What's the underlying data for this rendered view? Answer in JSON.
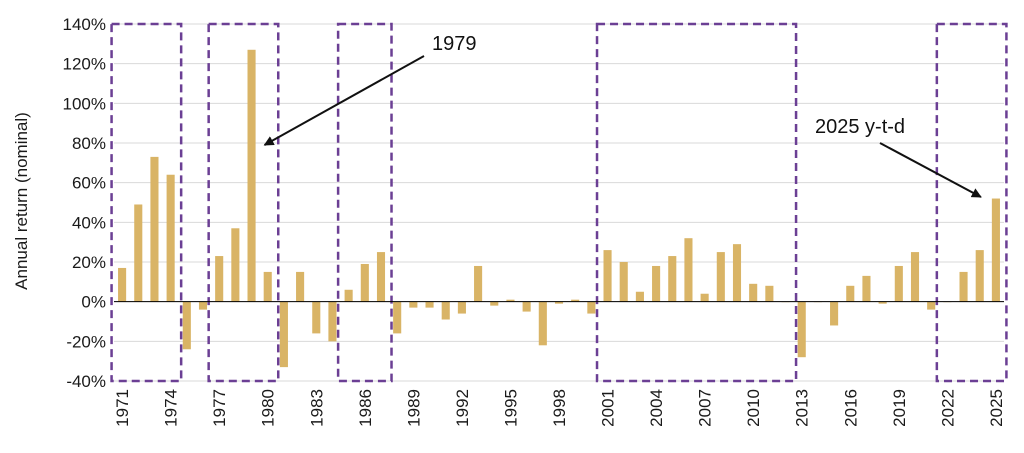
{
  "chart_data": {
    "type": "bar",
    "title": "",
    "xlabel": "",
    "ylabel": "Annual return (nominal)",
    "ylim": [
      -40,
      140
    ],
    "yticks": [
      -40,
      -20,
      0,
      20,
      40,
      60,
      80,
      100,
      120,
      140
    ],
    "ytick_labels": [
      "-40%",
      "-20%",
      "0%",
      "20%",
      "40%",
      "60%",
      "80%",
      "100%",
      "120%",
      "140%"
    ],
    "grid": "horizontal",
    "categories": [
      1971,
      1972,
      1973,
      1974,
      1975,
      1976,
      1977,
      1978,
      1979,
      1980,
      1981,
      1982,
      1983,
      1984,
      1985,
      1986,
      1987,
      1988,
      1989,
      1990,
      1991,
      1992,
      1993,
      1994,
      1995,
      1996,
      1997,
      1998,
      1999,
      2000,
      2001,
      2002,
      2003,
      2004,
      2005,
      2006,
      2007,
      2008,
      2009,
      2010,
      2011,
      2012,
      2013,
      2014,
      2015,
      2016,
      2017,
      2018,
      2019,
      2020,
      2021,
      2022,
      2023,
      2024,
      2025
    ],
    "xtick_labels": [
      "1971",
      "1974",
      "1977",
      "1980",
      "1983",
      "1986",
      "1989",
      "1992",
      "1995",
      "1998",
      "2001",
      "2004",
      "2007",
      "2010",
      "2013",
      "2016",
      "2019",
      "2022",
      "2025"
    ],
    "values": [
      17,
      49,
      73,
      64,
      -24,
      -4,
      23,
      37,
      127,
      15,
      -33,
      15,
      -16,
      -20,
      6,
      19,
      25,
      -16,
      -3,
      -3,
      -9,
      -6,
      18,
      -2,
      1,
      -5,
      -22,
      -1,
      1,
      -6,
      26,
      20,
      5,
      18,
      23,
      32,
      4,
      25,
      29,
      9,
      8,
      0,
      -28,
      0,
      -12,
      8,
      13,
      -1,
      18,
      25,
      -4,
      0,
      15,
      26,
      52
    ],
    "highlight_periods": [
      [
        1971,
        1974
      ],
      [
        1977,
        1980
      ],
      [
        1985,
        1987
      ],
      [
        2001,
        2012
      ],
      [
        2022,
        2025
      ]
    ],
    "annotations": [
      {
        "text": "1979",
        "target_year": 1979
      },
      {
        "text": "2025 y-t-d",
        "target_year": 2025
      }
    ]
  },
  "colors": {
    "bar": "#D9B466",
    "highlight_box": "#6B3F94",
    "grid": "#d9d9d9",
    "axis": "#000000"
  }
}
